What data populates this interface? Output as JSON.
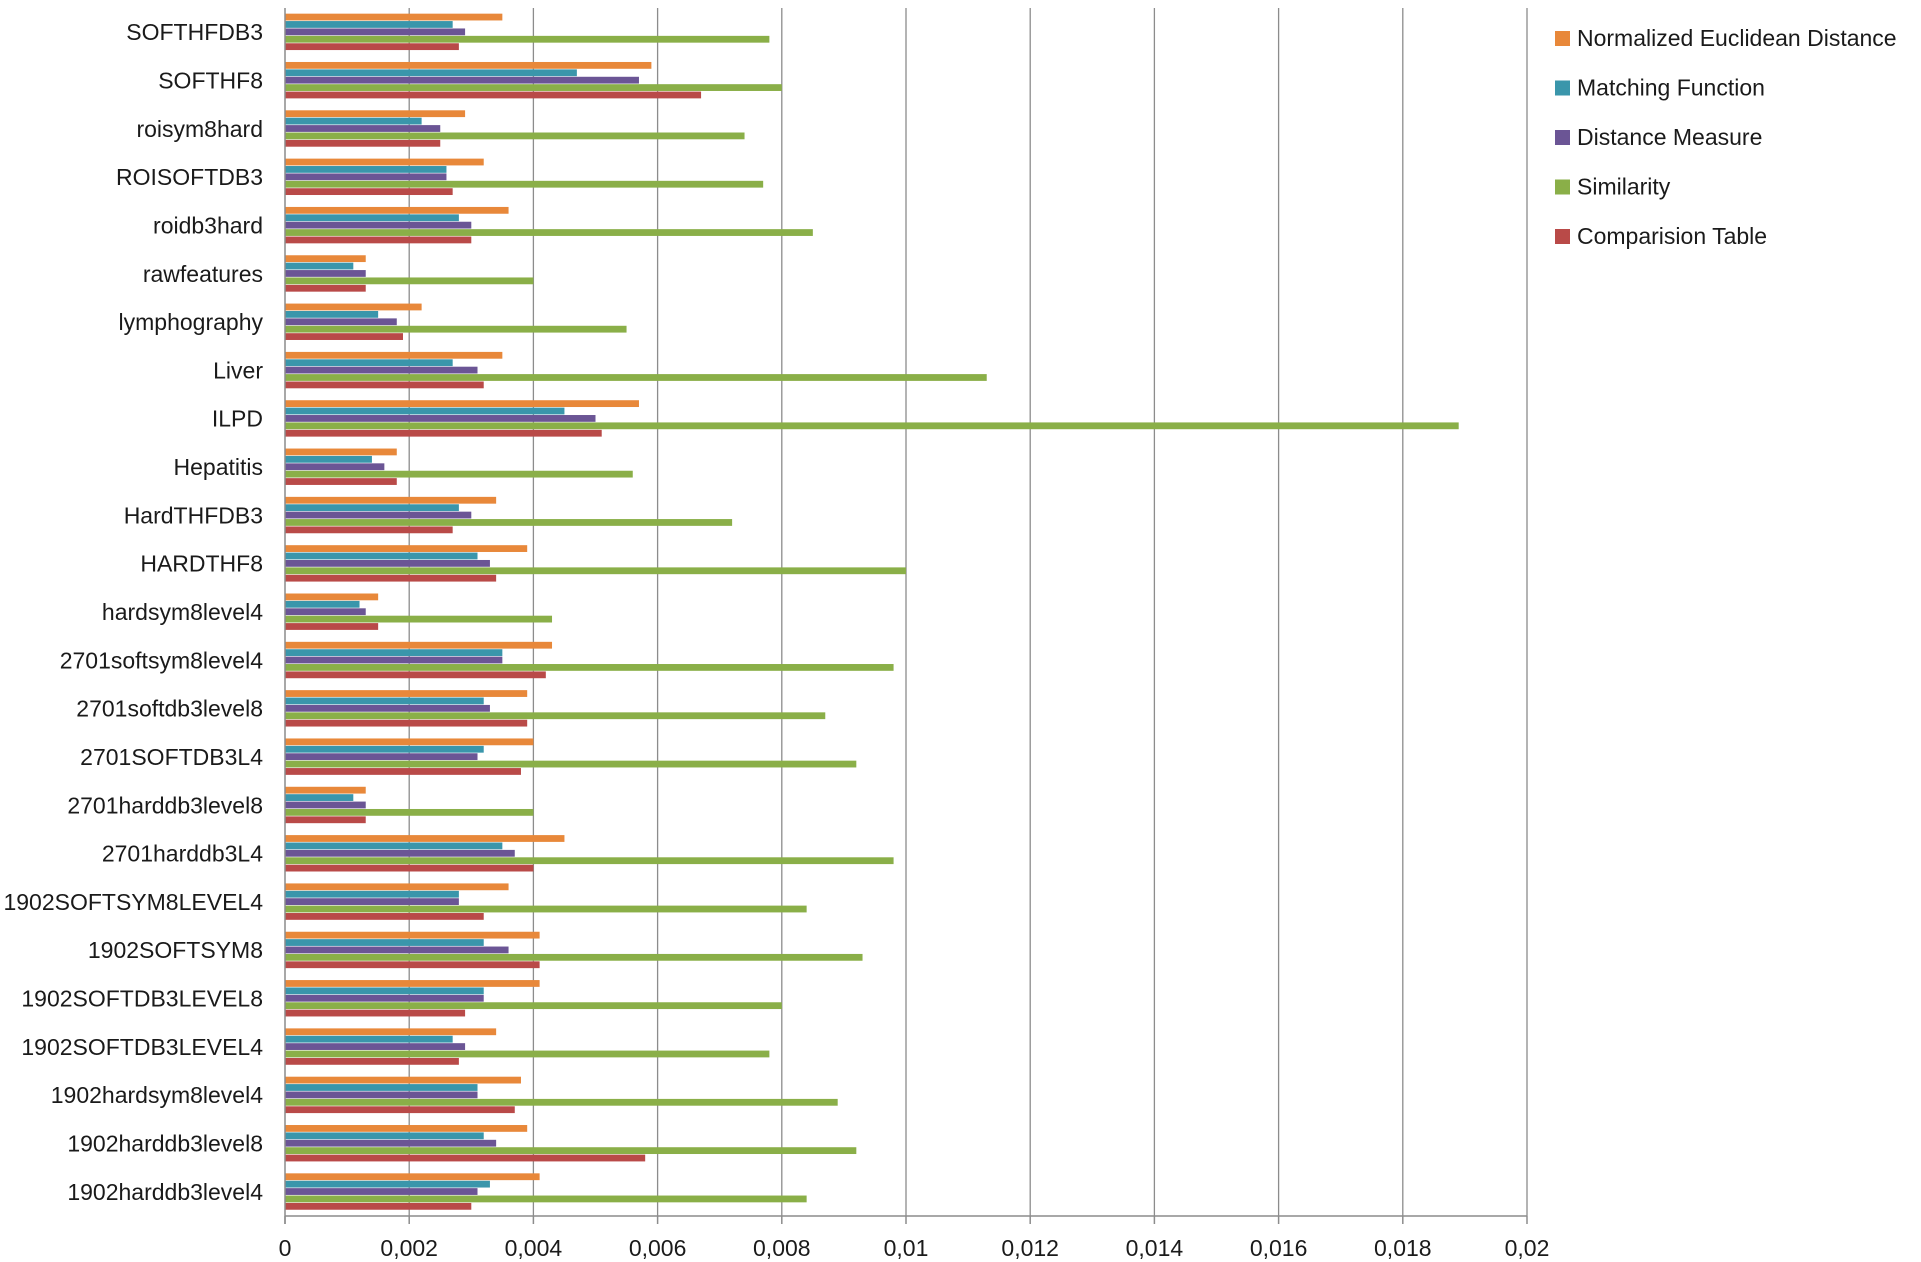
{
  "chart_data": {
    "type": "bar",
    "orientation": "horizontal",
    "title": "",
    "xlabel": "",
    "ylabel": "",
    "xlim": [
      0,
      0.02
    ],
    "grid": true,
    "legend_position": "top-right",
    "x_ticks": [
      0,
      0.002,
      0.004,
      0.006,
      0.008,
      0.01,
      0.012,
      0.014,
      0.016,
      0.018,
      0.02
    ],
    "x_tick_labels": [
      "0",
      "0,002",
      "0,004",
      "0,006",
      "0,008",
      "0,01",
      "0,012",
      "0,014",
      "0,016",
      "0,018",
      "0,02"
    ],
    "categories": [
      "SOFTHFDB3",
      "SOFTHF8",
      "roisym8hard",
      "ROISOFTDB3",
      "roidb3hard",
      "rawfeatures",
      "lymphography",
      "Liver",
      "ILPD",
      "Hepatitis",
      "HardTHFDB3",
      "HARDTHF8",
      "hardsym8level4",
      "2701softsym8level4",
      "2701softdb3level8",
      "2701SOFTDB3L4",
      "2701harddb3level8",
      "2701harddb3L4",
      "1902SOFTSYM8LEVEL4",
      "1902SOFTSYM8",
      "1902SOFTDB3LEVEL8",
      "1902SOFTDB3LEVEL4",
      "1902hardsym8level4",
      "1902harddb3level8",
      "1902harddb3level4"
    ],
    "series": [
      {
        "name": "Normalized Euclidean Distance",
        "color": "#e8883a",
        "values": [
          0.0035,
          0.0059,
          0.0029,
          0.0032,
          0.0036,
          0.0013,
          0.0022,
          0.0035,
          0.0057,
          0.0018,
          0.0034,
          0.0039,
          0.0015,
          0.0043,
          0.0039,
          0.004,
          0.0013,
          0.0045,
          0.0036,
          0.0041,
          0.0041,
          0.0034,
          0.0038,
          0.0039,
          0.0041
        ]
      },
      {
        "name": "Matching Function",
        "color": "#3a96ab",
        "values": [
          0.0027,
          0.0047,
          0.0022,
          0.0026,
          0.0028,
          0.0011,
          0.0015,
          0.0027,
          0.0045,
          0.0014,
          0.0028,
          0.0031,
          0.0012,
          0.0035,
          0.0032,
          0.0032,
          0.0011,
          0.0035,
          0.0028,
          0.0032,
          0.0032,
          0.0027,
          0.0031,
          0.0032,
          0.0033
        ]
      },
      {
        "name": "Distance Measure",
        "color": "#6b5595",
        "values": [
          0.0029,
          0.0057,
          0.0025,
          0.0026,
          0.003,
          0.0013,
          0.0018,
          0.0031,
          0.005,
          0.0016,
          0.003,
          0.0033,
          0.0013,
          0.0035,
          0.0033,
          0.0031,
          0.0013,
          0.0037,
          0.0028,
          0.0036,
          0.0032,
          0.0029,
          0.0031,
          0.0034,
          0.0031
        ]
      },
      {
        "name": "Similarity",
        "color": "#8aaf48",
        "values": [
          0.0078,
          0.008,
          0.0074,
          0.0077,
          0.0085,
          0.004,
          0.0055,
          0.0113,
          0.0189,
          0.0056,
          0.0072,
          0.01,
          0.0043,
          0.0098,
          0.0087,
          0.0092,
          0.004,
          0.0098,
          0.0084,
          0.0093,
          0.008,
          0.0078,
          0.0089,
          0.0092,
          0.0084
        ]
      },
      {
        "name": "Comparision Table",
        "color": "#b94a48",
        "values": [
          0.0028,
          0.0067,
          0.0025,
          0.0027,
          0.003,
          0.0013,
          0.0019,
          0.0032,
          0.0051,
          0.0018,
          0.0027,
          0.0034,
          0.0015,
          0.0042,
          0.0039,
          0.0038,
          0.0013,
          0.004,
          0.0032,
          0.0041,
          0.0029,
          0.0028,
          0.0037,
          0.0058,
          0.003
        ]
      }
    ]
  }
}
